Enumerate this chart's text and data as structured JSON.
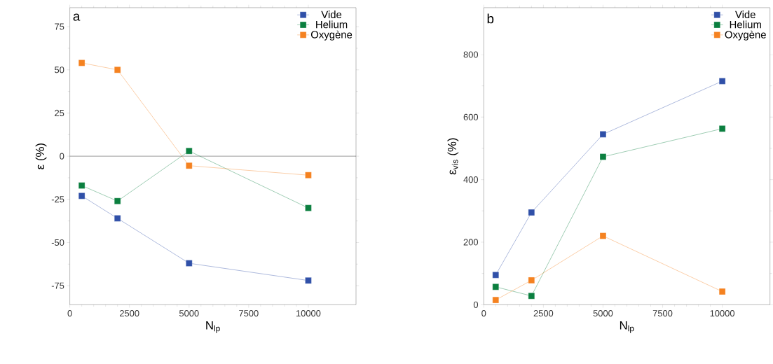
{
  "chart_data": [
    {
      "type": "line",
      "xlabel": "N$_{lp}$",
      "ylabel": "ε (%)",
      "annotations": [
        "a"
      ],
      "x": [
        500,
        2000,
        5000,
        10000
      ],
      "xlim": [
        0,
        12000
      ],
      "xticks": [
        0,
        2500,
        5000,
        7500,
        10000
      ],
      "ylim": [
        -86,
        86
      ],
      "yticks": [
        -75,
        -50,
        -25,
        0,
        25,
        50,
        75
      ],
      "marker": "square",
      "legend": "top right",
      "grid": false,
      "ref_lines": [
        {
          "axis": "y",
          "value": 0,
          "color": "#000000"
        }
      ],
      "series": [
        {
          "name": "Vide",
          "color": "#3050a8",
          "values": [
            -23,
            -36,
            -62,
            -72
          ]
        },
        {
          "name": "Helium",
          "color": "#0b7f3f",
          "values": [
            -17,
            -26,
            3,
            -30
          ]
        },
        {
          "name": "Oxygène",
          "color": "#f58220",
          "values": [
            54,
            50,
            -5.5,
            -11
          ]
        }
      ]
    },
    {
      "type": "line",
      "xlabel": "N$_{lp}$",
      "ylabel": "ε$_{vis}$ (%)",
      "annotations": [
        "b"
      ],
      "x": [
        500,
        2000,
        5000,
        10000
      ],
      "xlim": [
        0,
        12000
      ],
      "xticks": [
        0,
        2500,
        5000,
        7500,
        10000
      ],
      "ylim": [
        0,
        950
      ],
      "yticks": [
        0,
        200,
        400,
        600,
        800
      ],
      "marker": "square",
      "legend": "top right",
      "grid": false,
      "series": [
        {
          "name": "Vide",
          "color": "#3050a8",
          "values": [
            95,
            295,
            545,
            715
          ]
        },
        {
          "name": "Helium",
          "color": "#0b7f3f",
          "values": [
            57,
            28,
            473,
            563
          ]
        },
        {
          "name": "Oxygène",
          "color": "#f58220",
          "values": [
            15,
            78,
            220,
            42
          ]
        }
      ]
    }
  ]
}
